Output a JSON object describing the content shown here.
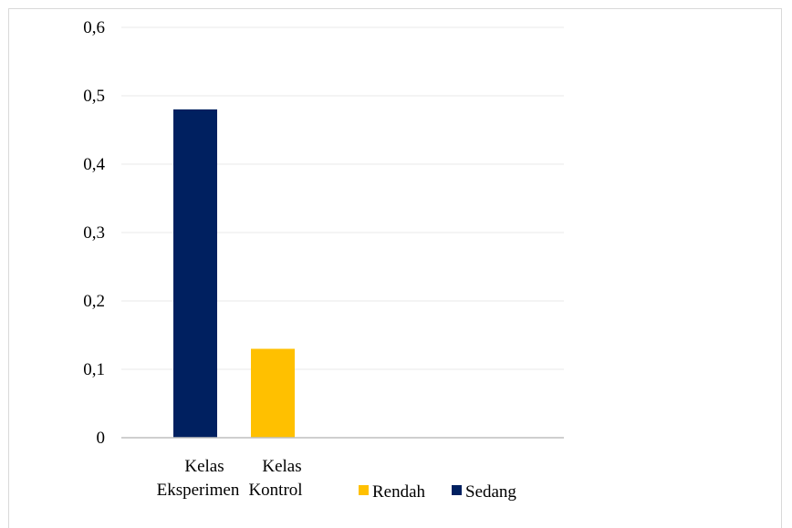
{
  "chart_data": {
    "type": "bar",
    "title": "",
    "xlabel": "",
    "ylabel": "",
    "ylim": [
      0,
      0.6
    ],
    "y_ticks": [
      "0",
      "0,1",
      "0,2",
      "0,3",
      "0,4",
      "0,5",
      "0,6"
    ],
    "y_tick_values": [
      0,
      0.1,
      0.2,
      0.3,
      0.4,
      0.5,
      0.6
    ],
    "grid": true,
    "legend_position": "bottom-right",
    "categories": [
      {
        "line1": "Kelas",
        "line2": "Eksperimen"
      },
      {
        "line1": "Kelas",
        "line2": "Kontrol"
      }
    ],
    "bars": [
      {
        "category_index": 0,
        "series": "Sedang",
        "value": 0.48,
        "color": "#002060"
      },
      {
        "category_index": 1,
        "series": "Rendah",
        "value": 0.13,
        "color": "#FFC000"
      }
    ],
    "legend": [
      {
        "name": "Rendah",
        "color": "#FFC000"
      },
      {
        "name": "Sedang",
        "color": "#002060"
      }
    ]
  }
}
